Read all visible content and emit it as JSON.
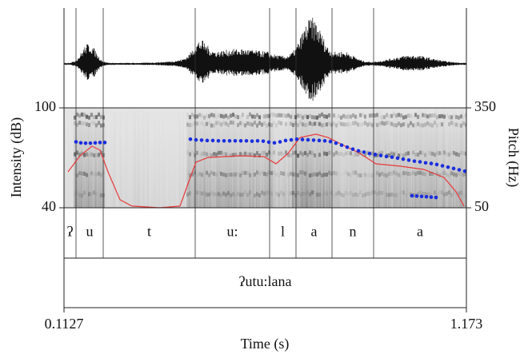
{
  "chart_data": {
    "type": "praat",
    "xlabel": "Time (s)",
    "ylabel": "Intensity (dB)",
    "y2label": "Pitch (Hz)",
    "xlim": [
      0.1127,
      1.173
    ],
    "xticks": [
      0.1127,
      1.173
    ],
    "ylim": [
      40,
      100
    ],
    "yticks": [
      40,
      100
    ],
    "y2lim": [
      50,
      350
    ],
    "y2ticks": [
      50,
      350
    ],
    "series": [
      {
        "color": "#e8393a",
        "style": "line",
        "x": [
          0.1232,
          0.1549,
          0.1865,
          0.2076,
          0.2286,
          0.2603,
          0.2919,
          0.3657,
          0.4184,
          0.4395,
          0.4605,
          0.4922,
          0.5765,
          0.6397,
          0.6713,
          0.7029,
          0.7345,
          0.7767,
          0.8083,
          0.8504,
          0.8926,
          0.9348,
          0.998,
          1.0613,
          1.114,
          1.1456,
          1.1667
        ],
        "values": [
          61.6,
          71.2,
          77,
          74.6,
          61.6,
          44.8,
          41,
          40,
          41,
          54.4,
          67.4,
          70.2,
          71.2,
          70.7,
          66.4,
          72.6,
          82.2,
          84.2,
          82.2,
          77.4,
          72.6,
          66.4,
          65,
          63,
          58.2,
          49.6,
          41
        ]
      },
      {
        "color": "#1a2ee0",
        "style": "dots",
        "axis": "y2",
        "x": [
          0.1443,
          0.157,
          0.1696,
          0.1823,
          0.1949,
          0.2076,
          0.2202,
          0.4458,
          0.4605,
          0.4753,
          0.49,
          0.5048,
          0.5195,
          0.5343,
          0.5491,
          0.5638,
          0.5786,
          0.5933,
          0.6081,
          0.6228,
          0.6376,
          0.6524,
          0.6671,
          0.6819,
          0.6966,
          0.7114,
          0.7261,
          0.7409,
          0.7556,
          0.7704,
          0.7852,
          0.7999,
          0.8147,
          0.8294,
          0.8442,
          0.8589,
          0.8737,
          0.8884,
          0.9032,
          0.9179,
          0.9327,
          0.9475,
          0.9622,
          0.977,
          0.9917,
          1.0065,
          1.0212,
          1.036,
          1.0507,
          1.0655,
          1.0803,
          1.095,
          1.1098,
          1.1245,
          1.1393,
          1.154,
          1.1688,
          1.0297,
          1.0423,
          1.055,
          1.0676,
          1.0803,
          1.0929
        ],
        "values": [
          248,
          245,
          244,
          244,
          245,
          246,
          246,
          256,
          254,
          253,
          252,
          252,
          251,
          251,
          251,
          251,
          251,
          251,
          250,
          251,
          250,
          247,
          245,
          248,
          252,
          254,
          256,
          255,
          254,
          253,
          252,
          251,
          249,
          244,
          238,
          232,
          226,
          221,
          217,
          213,
          210,
          207,
          204,
          202,
          199,
          196,
          193,
          190,
          188,
          185,
          183,
          180,
          176,
          172,
          168,
          164,
          160,
          86,
          85,
          84,
          83,
          82,
          81
        ]
      }
    ],
    "tiers": [
      {
        "boundaries": [
          0.1443,
          0.216,
          0.4584,
          0.6545,
          0.724,
          0.8189,
          0.9285
        ],
        "labels": [
          "ʔ",
          "u",
          "t",
          "u:",
          "l",
          "a",
          "n",
          "a"
        ]
      },
      {
        "boundaries": [],
        "labels": [
          "ʔutu:lana"
        ]
      }
    ]
  }
}
